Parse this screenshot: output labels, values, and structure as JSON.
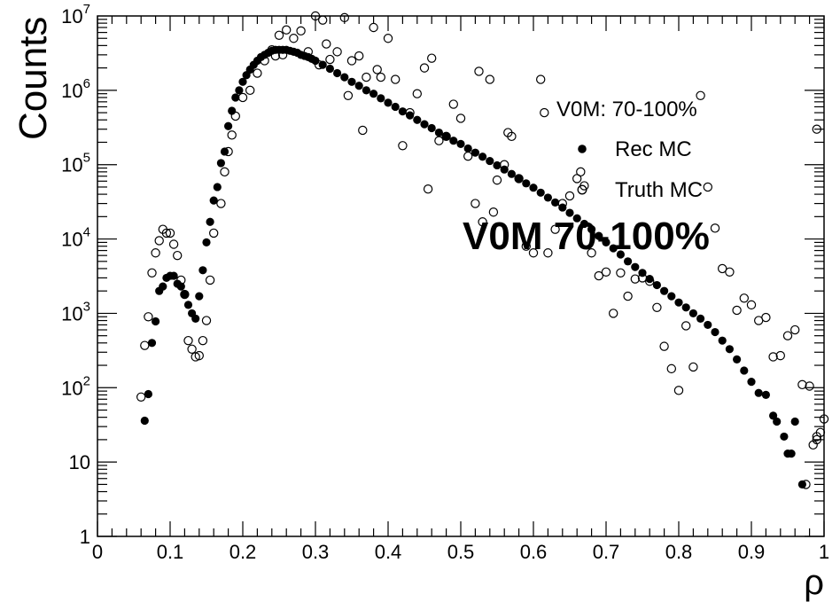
{
  "chart_data": {
    "type": "scatter",
    "title": "",
    "xlabel": "ρ",
    "ylabel": "Counts",
    "xlim": [
      0,
      1
    ],
    "ylim": [
      1,
      10000000
    ],
    "yscale": "log",
    "grid": false,
    "legend_position": "top-right",
    "legend_header": "V0M: 70-100%",
    "annotation": "V0M 70-100%",
    "x_ticks": [
      "0",
      "0.1",
      "0.2",
      "0.3",
      "0.4",
      "0.5",
      "0.6",
      "0.7",
      "0.8",
      "0.9",
      "1"
    ],
    "y_ticks": [
      {
        "base": "1",
        "exp": ""
      },
      {
        "base": "10",
        "exp": ""
      },
      {
        "base": "10",
        "exp": "2"
      },
      {
        "base": "10",
        "exp": "3"
      },
      {
        "base": "10",
        "exp": "4"
      },
      {
        "base": "10",
        "exp": "5"
      },
      {
        "base": "10",
        "exp": "6"
      },
      {
        "base": "10",
        "exp": "7"
      }
    ],
    "series": [
      {
        "name": "Rec MC",
        "marker": "filled-circle",
        "color": "#000000",
        "points": [
          [
            0.065,
            36
          ],
          [
            0.07,
            82
          ],
          [
            0.075,
            400
          ],
          [
            0.08,
            780
          ],
          [
            0.085,
            2000
          ],
          [
            0.09,
            2300
          ],
          [
            0.095,
            3000
          ],
          [
            0.1,
            3200
          ],
          [
            0.105,
            3200
          ],
          [
            0.11,
            2500
          ],
          [
            0.115,
            2300
          ],
          [
            0.12,
            1800
          ],
          [
            0.125,
            1300
          ],
          [
            0.13,
            1000
          ],
          [
            0.135,
            850
          ],
          [
            0.14,
            1700
          ],
          [
            0.145,
            3800
          ],
          [
            0.15,
            9000
          ],
          [
            0.155,
            17000
          ],
          [
            0.16,
            33000
          ],
          [
            0.165,
            50000
          ],
          [
            0.17,
            105000
          ],
          [
            0.175,
            150000
          ],
          [
            0.18,
            330000
          ],
          [
            0.185,
            530000
          ],
          [
            0.19,
            800000
          ],
          [
            0.195,
            1000000
          ],
          [
            0.2,
            1300000
          ],
          [
            0.205,
            1600000
          ],
          [
            0.21,
            1900000
          ],
          [
            0.215,
            2200000
          ],
          [
            0.22,
            2500000
          ],
          [
            0.225,
            2800000
          ],
          [
            0.23,
            3000000
          ],
          [
            0.235,
            3200000
          ],
          [
            0.24,
            3400000
          ],
          [
            0.245,
            3500000
          ],
          [
            0.25,
            3500000
          ],
          [
            0.255,
            3500000
          ],
          [
            0.26,
            3500000
          ],
          [
            0.265,
            3400000
          ],
          [
            0.27,
            3300000
          ],
          [
            0.275,
            3200000
          ],
          [
            0.28,
            3000000
          ],
          [
            0.285,
            2900000
          ],
          [
            0.29,
            2800000
          ],
          [
            0.295,
            2650000
          ],
          [
            0.3,
            2500000
          ],
          [
            0.31,
            2200000
          ],
          [
            0.32,
            1950000
          ],
          [
            0.33,
            1700000
          ],
          [
            0.34,
            1500000
          ],
          [
            0.35,
            1300000
          ],
          [
            0.36,
            1150000
          ],
          [
            0.37,
            1000000
          ],
          [
            0.38,
            900000
          ],
          [
            0.39,
            780000
          ],
          [
            0.4,
            680000
          ],
          [
            0.41,
            600000
          ],
          [
            0.42,
            520000
          ],
          [
            0.43,
            460000
          ],
          [
            0.44,
            400000
          ],
          [
            0.45,
            350000
          ],
          [
            0.46,
            310000
          ],
          [
            0.47,
            270000
          ],
          [
            0.48,
            240000
          ],
          [
            0.49,
            210000
          ],
          [
            0.5,
            190000
          ],
          [
            0.51,
            165000
          ],
          [
            0.52,
            145000
          ],
          [
            0.53,
            128000
          ],
          [
            0.54,
            112000
          ],
          [
            0.55,
            98000
          ],
          [
            0.56,
            86000
          ],
          [
            0.57,
            75000
          ],
          [
            0.58,
            65000
          ],
          [
            0.59,
            56000
          ],
          [
            0.6,
            49000
          ],
          [
            0.61,
            42000
          ],
          [
            0.62,
            36000
          ],
          [
            0.63,
            31000
          ],
          [
            0.64,
            26500
          ],
          [
            0.65,
            22500
          ],
          [
            0.66,
            19000
          ],
          [
            0.67,
            16000
          ],
          [
            0.68,
            13500
          ],
          [
            0.69,
            11000
          ],
          [
            0.7,
            9000
          ],
          [
            0.71,
            7500
          ],
          [
            0.72,
            6200
          ],
          [
            0.73,
            5000
          ],
          [
            0.74,
            4200
          ],
          [
            0.75,
            3500
          ],
          [
            0.76,
            2900
          ],
          [
            0.77,
            2400
          ],
          [
            0.78,
            2000
          ],
          [
            0.79,
            1700
          ],
          [
            0.8,
            1400
          ],
          [
            0.81,
            1200
          ],
          [
            0.82,
            1000
          ],
          [
            0.83,
            850
          ],
          [
            0.84,
            700
          ],
          [
            0.85,
            560
          ],
          [
            0.86,
            430
          ],
          [
            0.87,
            330
          ],
          [
            0.88,
            240
          ],
          [
            0.89,
            170
          ],
          [
            0.9,
            120
          ],
          [
            0.91,
            85
          ],
          [
            0.92,
            80
          ],
          [
            0.93,
            42
          ],
          [
            0.935,
            35
          ],
          [
            0.945,
            22
          ],
          [
            0.95,
            13
          ],
          [
            0.955,
            13
          ],
          [
            0.96,
            35
          ],
          [
            0.97,
            5
          ]
        ]
      },
      {
        "name": "Truth MC",
        "marker": "open-circle",
        "color": "#000000",
        "points": [
          [
            0.06,
            75
          ],
          [
            0.065,
            370
          ],
          [
            0.07,
            900
          ],
          [
            0.075,
            3500
          ],
          [
            0.08,
            6500
          ],
          [
            0.085,
            9500
          ],
          [
            0.09,
            13500
          ],
          [
            0.095,
            12000
          ],
          [
            0.1,
            12000
          ],
          [
            0.105,
            8500
          ],
          [
            0.11,
            6000
          ],
          [
            0.115,
            2800
          ],
          [
            0.12,
            1800
          ],
          [
            0.125,
            430
          ],
          [
            0.13,
            330
          ],
          [
            0.135,
            260
          ],
          [
            0.14,
            270
          ],
          [
            0.145,
            430
          ],
          [
            0.15,
            800
          ],
          [
            0.155,
            2800
          ],
          [
            0.16,
            12000
          ],
          [
            0.17,
            30000
          ],
          [
            0.175,
            80000
          ],
          [
            0.18,
            150000
          ],
          [
            0.185,
            250000
          ],
          [
            0.19,
            450000
          ],
          [
            0.2,
            800000
          ],
          [
            0.21,
            1000000
          ],
          [
            0.22,
            1700000
          ],
          [
            0.23,
            2500000
          ],
          [
            0.24,
            3500000
          ],
          [
            0.245,
            2900000
          ],
          [
            0.25,
            5500000
          ],
          [
            0.255,
            3000000
          ],
          [
            0.26,
            6500000
          ],
          [
            0.27,
            5000000
          ],
          [
            0.28,
            6300000
          ],
          [
            0.29,
            3300000
          ],
          [
            0.3,
            10000000
          ],
          [
            0.305,
            2200000
          ],
          [
            0.31,
            8800000
          ],
          [
            0.315,
            4200000
          ],
          [
            0.32,
            2600000
          ],
          [
            0.33,
            3300000
          ],
          [
            0.34,
            9500000
          ],
          [
            0.345,
            850000
          ],
          [
            0.35,
            2500000
          ],
          [
            0.36,
            2900000
          ],
          [
            0.365,
            290000
          ],
          [
            0.37,
            1500000
          ],
          [
            0.38,
            7000000
          ],
          [
            0.385,
            1900000
          ],
          [
            0.39,
            1500000
          ],
          [
            0.4,
            5000000
          ],
          [
            0.41,
            1400000
          ],
          [
            0.42,
            180000
          ],
          [
            0.43,
            500000
          ],
          [
            0.44,
            900000
          ],
          [
            0.45,
            2000000
          ],
          [
            0.455,
            47000
          ],
          [
            0.46,
            2700000
          ],
          [
            0.47,
            210000
          ],
          [
            0.48,
            240000
          ],
          [
            0.49,
            650000
          ],
          [
            0.5,
            420000
          ],
          [
            0.51,
            130000
          ],
          [
            0.52,
            30000
          ],
          [
            0.525,
            1800000
          ],
          [
            0.53,
            17000
          ],
          [
            0.54,
            1400000
          ],
          [
            0.545,
            23000
          ],
          [
            0.55,
            62000
          ],
          [
            0.56,
            100000
          ],
          [
            0.565,
            270000
          ],
          [
            0.57,
            240000
          ],
          [
            0.58,
            65000
          ],
          [
            0.59,
            8000
          ],
          [
            0.6,
            6500
          ],
          [
            0.61,
            1400000
          ],
          [
            0.615,
            500000
          ],
          [
            0.62,
            6500
          ],
          [
            0.63,
            13500
          ],
          [
            0.64,
            30000
          ],
          [
            0.65,
            38000
          ],
          [
            0.66,
            65000
          ],
          [
            0.665,
            80000
          ],
          [
            0.67,
            52000
          ],
          [
            0.68,
            6500
          ],
          [
            0.69,
            3200
          ],
          [
            0.7,
            3600
          ],
          [
            0.71,
            1000
          ],
          [
            0.72,
            3500
          ],
          [
            0.73,
            1700
          ],
          [
            0.74,
            2900
          ],
          [
            0.75,
            3000
          ],
          [
            0.76,
            2700
          ],
          [
            0.77,
            1200
          ],
          [
            0.78,
            360
          ],
          [
            0.79,
            180
          ],
          [
            0.8,
            92
          ],
          [
            0.81,
            680
          ],
          [
            0.82,
            190
          ],
          [
            0.83,
            850000
          ],
          [
            0.84,
            50000
          ],
          [
            0.85,
            14000
          ],
          [
            0.86,
            4000
          ],
          [
            0.87,
            3600
          ],
          [
            0.88,
            1100
          ],
          [
            0.89,
            1600
          ],
          [
            0.9,
            1300
          ],
          [
            0.91,
            800
          ],
          [
            0.92,
            880
          ],
          [
            0.93,
            260
          ],
          [
            0.94,
            270
          ],
          [
            0.95,
            500
          ],
          [
            0.96,
            600
          ],
          [
            0.97,
            110
          ],
          [
            0.98,
            105
          ],
          [
            0.99,
            22
          ],
          [
            1.0,
            38
          ],
          [
            0.995,
            25
          ],
          [
            0.99,
            20
          ],
          [
            0.985,
            17
          ],
          [
            0.975,
            5
          ],
          [
            0.99,
            300000
          ]
        ]
      }
    ]
  }
}
